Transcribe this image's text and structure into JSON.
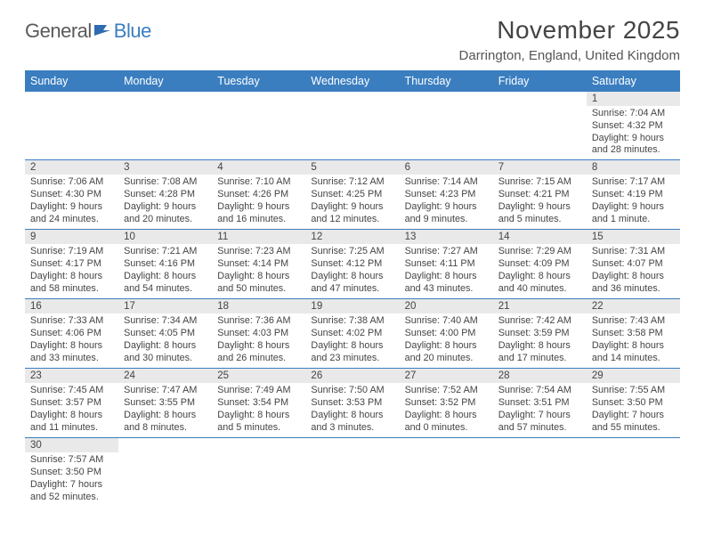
{
  "logo": {
    "word1": "General",
    "word2": "Blue"
  },
  "title": "November 2025",
  "location": "Darrington, England, United Kingdom",
  "header_bg": "#3b7ec0",
  "daynum_bg": "#e9e9e9",
  "row_border": "#3b7ec0",
  "text_color": "#444444",
  "day_headers": [
    "Sunday",
    "Monday",
    "Tuesday",
    "Wednesday",
    "Thursday",
    "Friday",
    "Saturday"
  ],
  "weeks": [
    [
      null,
      null,
      null,
      null,
      null,
      null,
      {
        "n": "1",
        "sunrise": "Sunrise: 7:04 AM",
        "sunset": "Sunset: 4:32 PM",
        "daylight1": "Daylight: 9 hours",
        "daylight2": "and 28 minutes."
      }
    ],
    [
      {
        "n": "2",
        "sunrise": "Sunrise: 7:06 AM",
        "sunset": "Sunset: 4:30 PM",
        "daylight1": "Daylight: 9 hours",
        "daylight2": "and 24 minutes."
      },
      {
        "n": "3",
        "sunrise": "Sunrise: 7:08 AM",
        "sunset": "Sunset: 4:28 PM",
        "daylight1": "Daylight: 9 hours",
        "daylight2": "and 20 minutes."
      },
      {
        "n": "4",
        "sunrise": "Sunrise: 7:10 AM",
        "sunset": "Sunset: 4:26 PM",
        "daylight1": "Daylight: 9 hours",
        "daylight2": "and 16 minutes."
      },
      {
        "n": "5",
        "sunrise": "Sunrise: 7:12 AM",
        "sunset": "Sunset: 4:25 PM",
        "daylight1": "Daylight: 9 hours",
        "daylight2": "and 12 minutes."
      },
      {
        "n": "6",
        "sunrise": "Sunrise: 7:14 AM",
        "sunset": "Sunset: 4:23 PM",
        "daylight1": "Daylight: 9 hours",
        "daylight2": "and 9 minutes."
      },
      {
        "n": "7",
        "sunrise": "Sunrise: 7:15 AM",
        "sunset": "Sunset: 4:21 PM",
        "daylight1": "Daylight: 9 hours",
        "daylight2": "and 5 minutes."
      },
      {
        "n": "8",
        "sunrise": "Sunrise: 7:17 AM",
        "sunset": "Sunset: 4:19 PM",
        "daylight1": "Daylight: 9 hours",
        "daylight2": "and 1 minute."
      }
    ],
    [
      {
        "n": "9",
        "sunrise": "Sunrise: 7:19 AM",
        "sunset": "Sunset: 4:17 PM",
        "daylight1": "Daylight: 8 hours",
        "daylight2": "and 58 minutes."
      },
      {
        "n": "10",
        "sunrise": "Sunrise: 7:21 AM",
        "sunset": "Sunset: 4:16 PM",
        "daylight1": "Daylight: 8 hours",
        "daylight2": "and 54 minutes."
      },
      {
        "n": "11",
        "sunrise": "Sunrise: 7:23 AM",
        "sunset": "Sunset: 4:14 PM",
        "daylight1": "Daylight: 8 hours",
        "daylight2": "and 50 minutes."
      },
      {
        "n": "12",
        "sunrise": "Sunrise: 7:25 AM",
        "sunset": "Sunset: 4:12 PM",
        "daylight1": "Daylight: 8 hours",
        "daylight2": "and 47 minutes."
      },
      {
        "n": "13",
        "sunrise": "Sunrise: 7:27 AM",
        "sunset": "Sunset: 4:11 PM",
        "daylight1": "Daylight: 8 hours",
        "daylight2": "and 43 minutes."
      },
      {
        "n": "14",
        "sunrise": "Sunrise: 7:29 AM",
        "sunset": "Sunset: 4:09 PM",
        "daylight1": "Daylight: 8 hours",
        "daylight2": "and 40 minutes."
      },
      {
        "n": "15",
        "sunrise": "Sunrise: 7:31 AM",
        "sunset": "Sunset: 4:07 PM",
        "daylight1": "Daylight: 8 hours",
        "daylight2": "and 36 minutes."
      }
    ],
    [
      {
        "n": "16",
        "sunrise": "Sunrise: 7:33 AM",
        "sunset": "Sunset: 4:06 PM",
        "daylight1": "Daylight: 8 hours",
        "daylight2": "and 33 minutes."
      },
      {
        "n": "17",
        "sunrise": "Sunrise: 7:34 AM",
        "sunset": "Sunset: 4:05 PM",
        "daylight1": "Daylight: 8 hours",
        "daylight2": "and 30 minutes."
      },
      {
        "n": "18",
        "sunrise": "Sunrise: 7:36 AM",
        "sunset": "Sunset: 4:03 PM",
        "daylight1": "Daylight: 8 hours",
        "daylight2": "and 26 minutes."
      },
      {
        "n": "19",
        "sunrise": "Sunrise: 7:38 AM",
        "sunset": "Sunset: 4:02 PM",
        "daylight1": "Daylight: 8 hours",
        "daylight2": "and 23 minutes."
      },
      {
        "n": "20",
        "sunrise": "Sunrise: 7:40 AM",
        "sunset": "Sunset: 4:00 PM",
        "daylight1": "Daylight: 8 hours",
        "daylight2": "and 20 minutes."
      },
      {
        "n": "21",
        "sunrise": "Sunrise: 7:42 AM",
        "sunset": "Sunset: 3:59 PM",
        "daylight1": "Daylight: 8 hours",
        "daylight2": "and 17 minutes."
      },
      {
        "n": "22",
        "sunrise": "Sunrise: 7:43 AM",
        "sunset": "Sunset: 3:58 PM",
        "daylight1": "Daylight: 8 hours",
        "daylight2": "and 14 minutes."
      }
    ],
    [
      {
        "n": "23",
        "sunrise": "Sunrise: 7:45 AM",
        "sunset": "Sunset: 3:57 PM",
        "daylight1": "Daylight: 8 hours",
        "daylight2": "and 11 minutes."
      },
      {
        "n": "24",
        "sunrise": "Sunrise: 7:47 AM",
        "sunset": "Sunset: 3:55 PM",
        "daylight1": "Daylight: 8 hours",
        "daylight2": "and 8 minutes."
      },
      {
        "n": "25",
        "sunrise": "Sunrise: 7:49 AM",
        "sunset": "Sunset: 3:54 PM",
        "daylight1": "Daylight: 8 hours",
        "daylight2": "and 5 minutes."
      },
      {
        "n": "26",
        "sunrise": "Sunrise: 7:50 AM",
        "sunset": "Sunset: 3:53 PM",
        "daylight1": "Daylight: 8 hours",
        "daylight2": "and 3 minutes."
      },
      {
        "n": "27",
        "sunrise": "Sunrise: 7:52 AM",
        "sunset": "Sunset: 3:52 PM",
        "daylight1": "Daylight: 8 hours",
        "daylight2": "and 0 minutes."
      },
      {
        "n": "28",
        "sunrise": "Sunrise: 7:54 AM",
        "sunset": "Sunset: 3:51 PM",
        "daylight1": "Daylight: 7 hours",
        "daylight2": "and 57 minutes."
      },
      {
        "n": "29",
        "sunrise": "Sunrise: 7:55 AM",
        "sunset": "Sunset: 3:50 PM",
        "daylight1": "Daylight: 7 hours",
        "daylight2": "and 55 minutes."
      }
    ],
    [
      {
        "n": "30",
        "sunrise": "Sunrise: 7:57 AM",
        "sunset": "Sunset: 3:50 PM",
        "daylight1": "Daylight: 7 hours",
        "daylight2": "and 52 minutes."
      },
      null,
      null,
      null,
      null,
      null,
      null
    ]
  ]
}
